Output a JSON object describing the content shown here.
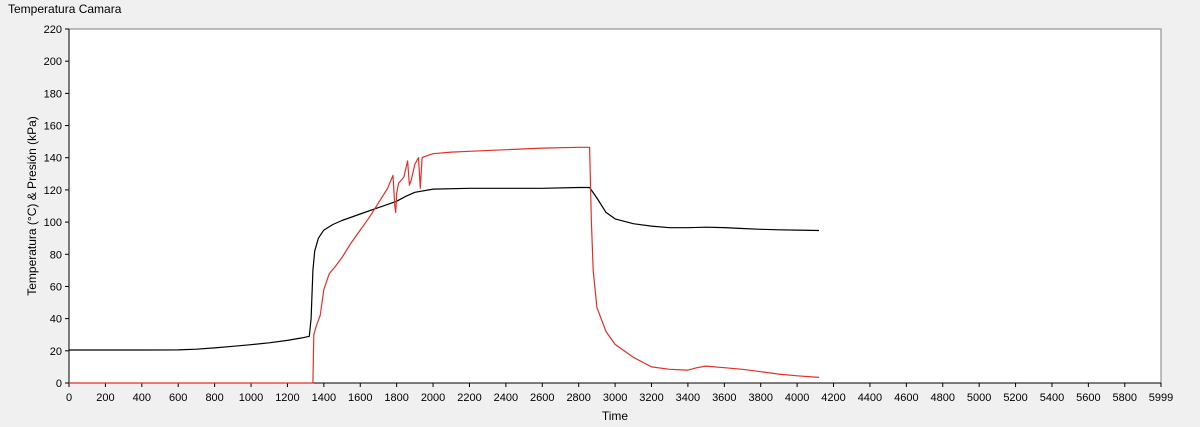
{
  "title": "Temperatura Camara",
  "chart_data": {
    "type": "line",
    "title": "Temperatura Camara",
    "xlabel": "Time",
    "ylabel": "Temperatura (°C) & Presión (kPa)",
    "xlim": [
      0,
      5999
    ],
    "ylim": [
      0,
      220
    ],
    "x_ticks": [
      "0",
      "200",
      "400",
      "600",
      "800",
      "1000",
      "1200",
      "1400",
      "1600",
      "1800",
      "2000",
      "2200",
      "2400",
      "2600",
      "2800",
      "3000",
      "3200",
      "3400",
      "3600",
      "3800",
      "4000",
      "4200",
      "4400",
      "4600",
      "4800",
      "5000",
      "5200",
      "5400",
      "5600",
      "5800",
      "5999"
    ],
    "y_ticks": [
      "0",
      "20",
      "40",
      "60",
      "80",
      "100",
      "120",
      "140",
      "160",
      "180",
      "200",
      "220"
    ],
    "grid": false,
    "colors": {
      "plot_bg": "#ffffff",
      "series_1": "#000000",
      "series_2": "#e0302a"
    },
    "series": [
      {
        "color": "#000000",
        "points": [
          [
            0,
            20.5
          ],
          [
            200,
            20.5
          ],
          [
            400,
            20.5
          ],
          [
            600,
            20.6
          ],
          [
            700,
            21
          ],
          [
            800,
            21.8
          ],
          [
            900,
            22.8
          ],
          [
            1000,
            23.8
          ],
          [
            1100,
            25
          ],
          [
            1200,
            26.5
          ],
          [
            1280,
            28
          ],
          [
            1320,
            29
          ],
          [
            1330,
            40
          ],
          [
            1340,
            70
          ],
          [
            1350,
            82
          ],
          [
            1370,
            90
          ],
          [
            1400,
            95
          ],
          [
            1450,
            98.5
          ],
          [
            1500,
            101
          ],
          [
            1600,
            105
          ],
          [
            1700,
            109
          ],
          [
            1800,
            113
          ],
          [
            1850,
            116
          ],
          [
            1900,
            118.5
          ],
          [
            2000,
            120.5
          ],
          [
            2200,
            121
          ],
          [
            2400,
            121
          ],
          [
            2600,
            121
          ],
          [
            2800,
            121.5
          ],
          [
            2860,
            121.5
          ],
          [
            2900,
            115
          ],
          [
            2950,
            106
          ],
          [
            3000,
            102
          ],
          [
            3100,
            99
          ],
          [
            3200,
            97.5
          ],
          [
            3300,
            96.5
          ],
          [
            3400,
            96.5
          ],
          [
            3500,
            96.8
          ],
          [
            3600,
            96.6
          ],
          [
            3700,
            96
          ],
          [
            3800,
            95.5
          ],
          [
            3900,
            95.2
          ],
          [
            4000,
            95
          ],
          [
            4120,
            94.8
          ]
        ]
      },
      {
        "color": "#e0302a",
        "points": [
          [
            0,
            0
          ],
          [
            1330,
            0
          ],
          [
            1340,
            0
          ],
          [
            1345,
            30
          ],
          [
            1360,
            36
          ],
          [
            1380,
            42
          ],
          [
            1400,
            58
          ],
          [
            1430,
            68
          ],
          [
            1460,
            72
          ],
          [
            1500,
            78
          ],
          [
            1550,
            87
          ],
          [
            1600,
            95
          ],
          [
            1650,
            103
          ],
          [
            1700,
            112
          ],
          [
            1750,
            121
          ],
          [
            1780,
            129
          ],
          [
            1790,
            110
          ],
          [
            1795,
            106
          ],
          [
            1800,
            118
          ],
          [
            1810,
            124
          ],
          [
            1840,
            128
          ],
          [
            1860,
            138
          ],
          [
            1870,
            123
          ],
          [
            1880,
            126
          ],
          [
            1900,
            136
          ],
          [
            1920,
            140
          ],
          [
            1930,
            121
          ],
          [
            1940,
            140
          ],
          [
            1960,
            141
          ],
          [
            2000,
            142.5
          ],
          [
            2100,
            143.5
          ],
          [
            2200,
            144
          ],
          [
            2400,
            145
          ],
          [
            2600,
            146
          ],
          [
            2800,
            146.5
          ],
          [
            2860,
            146.5
          ],
          [
            2870,
            100
          ],
          [
            2880,
            70
          ],
          [
            2900,
            47
          ],
          [
            2950,
            32
          ],
          [
            3000,
            24
          ],
          [
            3100,
            16
          ],
          [
            3200,
            10
          ],
          [
            3300,
            8.5
          ],
          [
            3400,
            8
          ],
          [
            3450,
            9.5
          ],
          [
            3500,
            10.5
          ],
          [
            3600,
            9.5
          ],
          [
            3700,
            8.5
          ],
          [
            3800,
            7
          ],
          [
            3900,
            5.5
          ],
          [
            4000,
            4.5
          ],
          [
            4120,
            3.5
          ]
        ]
      }
    ]
  }
}
